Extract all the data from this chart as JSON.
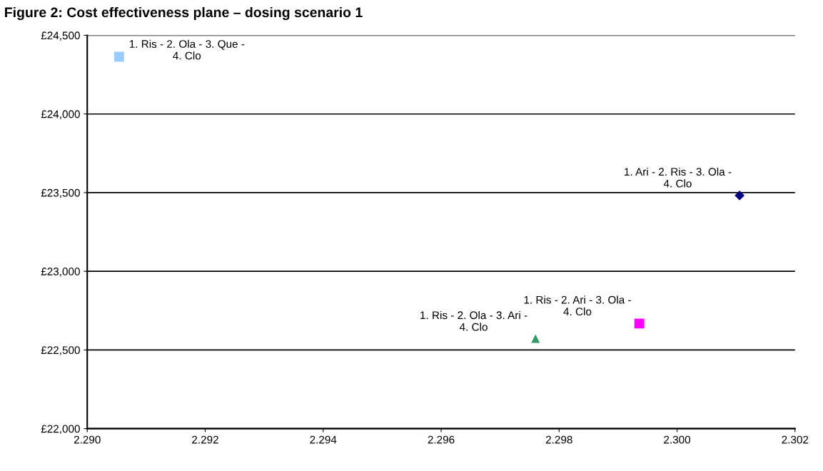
{
  "chart_data": {
    "type": "scatter",
    "title": "Figure 2: Cost effectiveness plane – dosing scenario 1",
    "series": [
      {
        "name": "1. Ris - 2. Ola - 3. Que -\n4. Clo",
        "color": "#99ccff",
        "marker": "square",
        "x": [
          2.29054
        ],
        "values": [
          24364
        ]
      },
      {
        "name": "1. Ari - 2. Ris - 3. Ola -\n4. Clo",
        "color": "#000080",
        "marker": "diamond",
        "x": [
          2.30106
        ],
        "values": [
          23482
        ]
      },
      {
        "name": "1. Ris - 2. Ari - 3. Ola -\n4. Clo",
        "color": "#ff00ff",
        "marker": "square",
        "x": [
          2.29936
        ],
        "values": [
          22668
        ]
      },
      {
        "name": "1. Ris - 2. Ola - 3. Ari -\n4. Clo",
        "color": "#339966",
        "marker": "triangle",
        "x": [
          2.2976
        ],
        "values": [
          22570
        ]
      }
    ],
    "xlim": [
      2.29,
      2.302
    ],
    "xticks": [
      {
        "value": 2.29,
        "label": "2.290"
      },
      {
        "value": 2.292,
        "label": "2.292"
      },
      {
        "value": 2.294,
        "label": "2.294"
      },
      {
        "value": 2.296,
        "label": "2.296"
      },
      {
        "value": 2.298,
        "label": "2.298"
      },
      {
        "value": 2.3,
        "label": "2.300"
      },
      {
        "value": 2.302,
        "label": "2.302"
      }
    ],
    "ylim": [
      22000,
      24500
    ],
    "yticks": [
      {
        "value": 22000,
        "label": "£22,000"
      },
      {
        "value": 22500,
        "label": "£22,500"
      },
      {
        "value": 23000,
        "label": "£23,000"
      },
      {
        "value": 23500,
        "label": "£23,500"
      },
      {
        "value": 24000,
        "label": "£24,000"
      },
      {
        "value": 24500,
        "label": "£24,500"
      }
    ],
    "grid": "y",
    "legend": false
  }
}
